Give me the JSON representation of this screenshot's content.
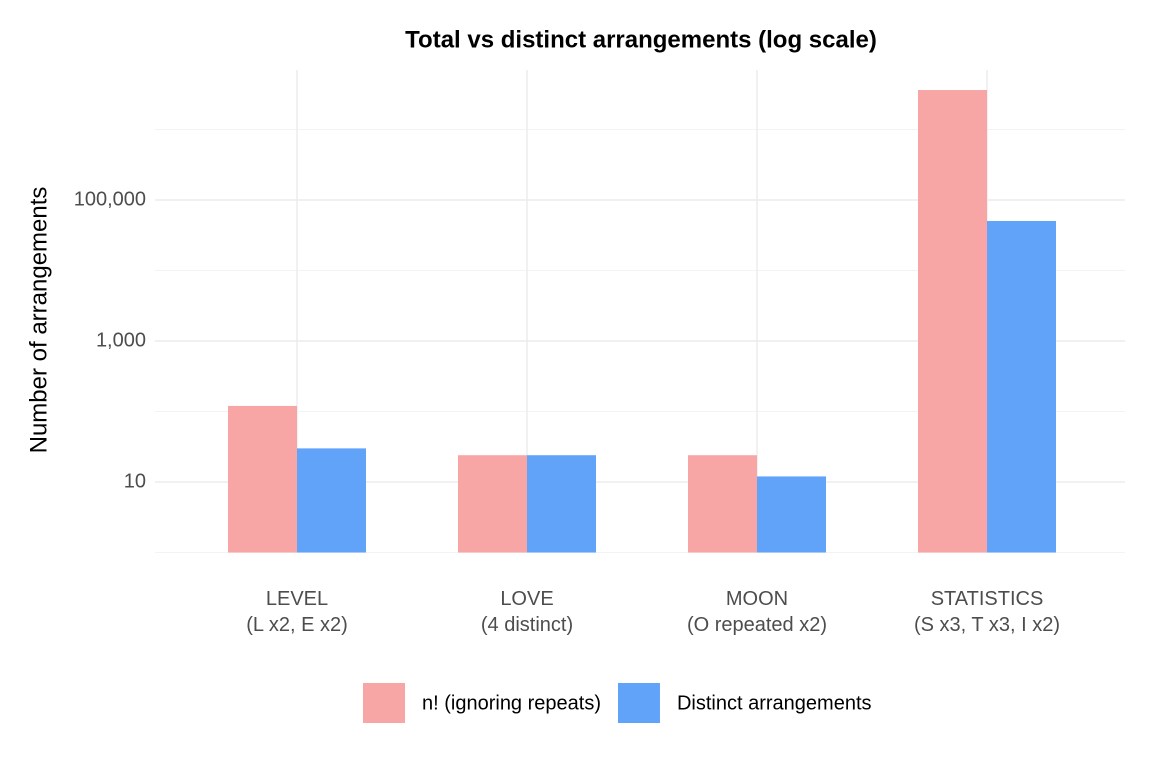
{
  "chart_data": {
    "type": "bar",
    "title": "Total vs distinct arrangements (log scale)",
    "y_label": "Number of arrangements",
    "categories": [
      "LEVEL\n(L x2, E x2)",
      "LOVE\n(4 distinct)",
      "MOON\n(O repeated x2)",
      "STATISTICS\n(S x3, T x3, I x2)"
    ],
    "series": [
      {
        "name": "n! (ignoring repeats)",
        "color": "#f8a5a5",
        "values": [
          120,
          24,
          24,
          3628800
        ]
      },
      {
        "name": "Distinct arrangements",
        "color": "#62a3fa",
        "values": [
          30,
          24,
          12,
          50400
        ]
      }
    ],
    "log_scale": true,
    "ylim": [
      0.565,
      6980000
    ],
    "yticks": [
      10,
      {
        "value": 1000,
        "label": "1,000"
      },
      {
        "value": 100000,
        "label": "100,000"
      }
    ],
    "minor_yticks": [
      1,
      100,
      10000,
      1000000
    ],
    "grid": true,
    "legend": "bottom"
  }
}
